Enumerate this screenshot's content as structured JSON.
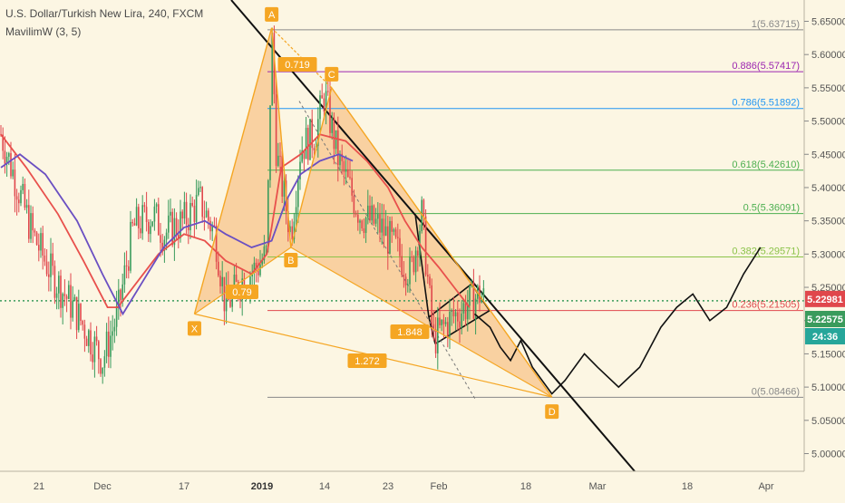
{
  "header": {
    "title": "U.S. Dollar/Turkish New Lira, 240, FXCM",
    "indicator": "MavilimW (3, 5)"
  },
  "colors": {
    "background": "#fcf6e3",
    "candle_up": "#3a9b5c",
    "candle_down": "#e0474c",
    "ma_red": "#e8504c",
    "ma_purple": "#6a4fc2",
    "pattern_fill": "#f6b26b",
    "pattern_stroke": "#f5a623",
    "price_badge_red": "#e0474c",
    "price_badge_green": "#3a9b5c",
    "timer_badge": "#26a69a"
  },
  "chart_data": {
    "type": "candlestick",
    "symbol": "USDTRY",
    "timeframe": "240",
    "ylim": [
      4.975,
      5.665
    ],
    "y_ticks": [
      "5.65000",
      "5.60000",
      "5.55000",
      "5.50000",
      "5.45000",
      "5.40000",
      "5.35000",
      "5.30000",
      "5.25000",
      "5.20000",
      "5.15000",
      "5.10000",
      "5.05000",
      "5.00000"
    ],
    "x_ticks": [
      "21",
      "Dec",
      "17",
      "2019",
      "14",
      "23",
      "Feb",
      "18",
      "Mar",
      "18",
      "Apr"
    ],
    "price_path": [
      [
        "Nov 15",
        5.48
      ],
      [
        "Nov 20",
        5.33
      ],
      [
        "Nov 23",
        5.27
      ],
      [
        "Nov 27",
        5.21
      ],
      [
        "Dec 1",
        5.14
      ],
      [
        "Dec 4",
        5.21
      ],
      [
        "Dec 7",
        5.34
      ],
      [
        "Dec 11",
        5.36
      ],
      [
        "Dec 13",
        5.33
      ],
      [
        "Dec 17",
        5.35
      ],
      [
        "Dec 20",
        5.38
      ],
      [
        "Dec 23",
        5.33
      ],
      [
        "Dec 25",
        5.22
      ],
      [
        "Dec 28",
        5.26
      ],
      [
        "Dec 31",
        5.28
      ],
      [
        "Jan 2",
        5.3
      ],
      [
        "Jan 3",
        5.64
      ],
      [
        "Jan 4",
        5.45
      ],
      [
        "Jan 7",
        5.33
      ],
      [
        "Jan 9",
        5.46
      ],
      [
        "Jan 12",
        5.48
      ],
      [
        "Jan 14",
        5.54
      ],
      [
        "Jan 16",
        5.44
      ],
      [
        "Jan 19",
        5.36
      ],
      [
        "Jan 22",
        5.34
      ],
      [
        "Jan 25",
        5.3
      ],
      [
        "Jan 27",
        5.27
      ],
      [
        "Jan 29",
        5.36
      ],
      [
        "Jan 31",
        5.17
      ],
      [
        "Feb 3",
        5.2
      ],
      [
        "Feb 6",
        5.22
      ],
      [
        "Feb 9",
        5.24
      ],
      [
        "Feb 10",
        5.23
      ]
    ],
    "ma_red_path": [
      [
        "Nov 15",
        5.48
      ],
      [
        "Nov 19",
        5.43
      ],
      [
        "Nov 24",
        5.36
      ],
      [
        "Nov 28",
        5.29
      ],
      [
        "Dec 2",
        5.22
      ],
      [
        "Dec 4",
        5.22
      ],
      [
        "Dec 8",
        5.26
      ],
      [
        "Dec 12",
        5.3
      ],
      [
        "Dec 17",
        5.33
      ],
      [
        "Dec 21",
        5.32
      ],
      [
        "Dec 25",
        5.29
      ],
      [
        "Dec 30",
        5.27
      ],
      [
        "Jan 2",
        5.3
      ],
      [
        "Jan 3",
        5.34
      ],
      [
        "Jan 5",
        5.43
      ],
      [
        "Jan 9",
        5.45
      ],
      [
        "Jan 13",
        5.48
      ],
      [
        "Jan 17",
        5.47
      ],
      [
        "Jan 20",
        5.44
      ],
      [
        "Jan 23",
        5.4
      ],
      [
        "Jan 26",
        5.35
      ],
      [
        "Jan 29",
        5.31
      ],
      [
        "Feb 1",
        5.28
      ],
      [
        "Feb 4",
        5.25
      ],
      [
        "Feb 7",
        5.22
      ]
    ],
    "ma_purple_path": [
      [
        "Nov 15",
        5.43
      ],
      [
        "Nov 18",
        5.45
      ],
      [
        "Nov 22",
        5.42
      ],
      [
        "Nov 27",
        5.35
      ],
      [
        "Dec 1",
        5.27
      ],
      [
        "Dec 5",
        5.21
      ],
      [
        "Dec 9",
        5.26
      ],
      [
        "Dec 13",
        5.31
      ],
      [
        "Dec 17",
        5.34
      ],
      [
        "Dec 21",
        5.35
      ],
      [
        "Dec 25",
        5.33
      ],
      [
        "Dec 30",
        5.31
      ],
      [
        "Jan 3",
        5.32
      ],
      [
        "Jan 6",
        5.38
      ],
      [
        "Jan 9",
        5.42
      ],
      [
        "Jan 13",
        5.44
      ],
      [
        "Jan 16",
        5.45
      ],
      [
        "Jan 18",
        5.44
      ]
    ],
    "projection_path": [
      [
        "Feb 8",
        5.21
      ],
      [
        "Feb 11",
        5.19
      ],
      [
        "Feb 13",
        5.16
      ],
      [
        "Feb 15",
        5.14
      ],
      [
        "Feb 17",
        5.17
      ],
      [
        "Feb 19",
        5.13
      ],
      [
        "Feb 22",
        5.09
      ],
      [
        "Feb 24",
        5.11
      ],
      [
        "Feb 27",
        5.15
      ],
      [
        "Mar 1",
        5.13
      ],
      [
        "Mar 5",
        5.1
      ],
      [
        "Mar 9",
        5.13
      ],
      [
        "Mar 13",
        5.19
      ],
      [
        "Mar 16",
        5.22
      ],
      [
        "Mar 19",
        5.24
      ],
      [
        "Mar 22",
        5.2
      ],
      [
        "Mar 25",
        5.22
      ],
      [
        "Mar 28",
        5.27
      ],
      [
        "Mar 31",
        5.31
      ]
    ],
    "fib_levels": [
      {
        "label": "1(5.63715)",
        "value": 5.63715,
        "color": "#888888"
      },
      {
        "label": "0.886(5.57417)",
        "value": 5.57417,
        "color": "#9c27b0"
      },
      {
        "label": "0.786(5.51892)",
        "value": 5.51892,
        "color": "#2196f3"
      },
      {
        "label": "0.618(5.42610)",
        "value": 5.4261,
        "color": "#4caf50"
      },
      {
        "label": "0.5(5.36091)",
        "value": 5.36091,
        "color": "#4caf50"
      },
      {
        "label": "0.382(5.29571)",
        "value": 5.29571,
        "color": "#8bc34a"
      },
      {
        "label": "0.236(5.21505)",
        "value": 5.21505,
        "color": "#e0474c"
      },
      {
        "label": "0(5.08466)",
        "value": 5.08466,
        "color": "#888888"
      }
    ],
    "pattern_points": [
      {
        "label": "X",
        "date": "Dec 19",
        "value": 5.21
      },
      {
        "label": "A",
        "date": "Jan 3",
        "value": 5.64
      },
      {
        "label": "B",
        "date": "Jan 7",
        "value": 5.31
      },
      {
        "label": "C",
        "date": "Jan 15",
        "value": 5.55
      },
      {
        "label": "D",
        "date": "Feb 22",
        "value": 5.085
      }
    ],
    "pattern_ratios": [
      "0.719",
      "0.79",
      "1.848",
      "1.272"
    ],
    "current_price": "5.22981",
    "secondary_price": "5.22575",
    "timer": "24:36"
  }
}
